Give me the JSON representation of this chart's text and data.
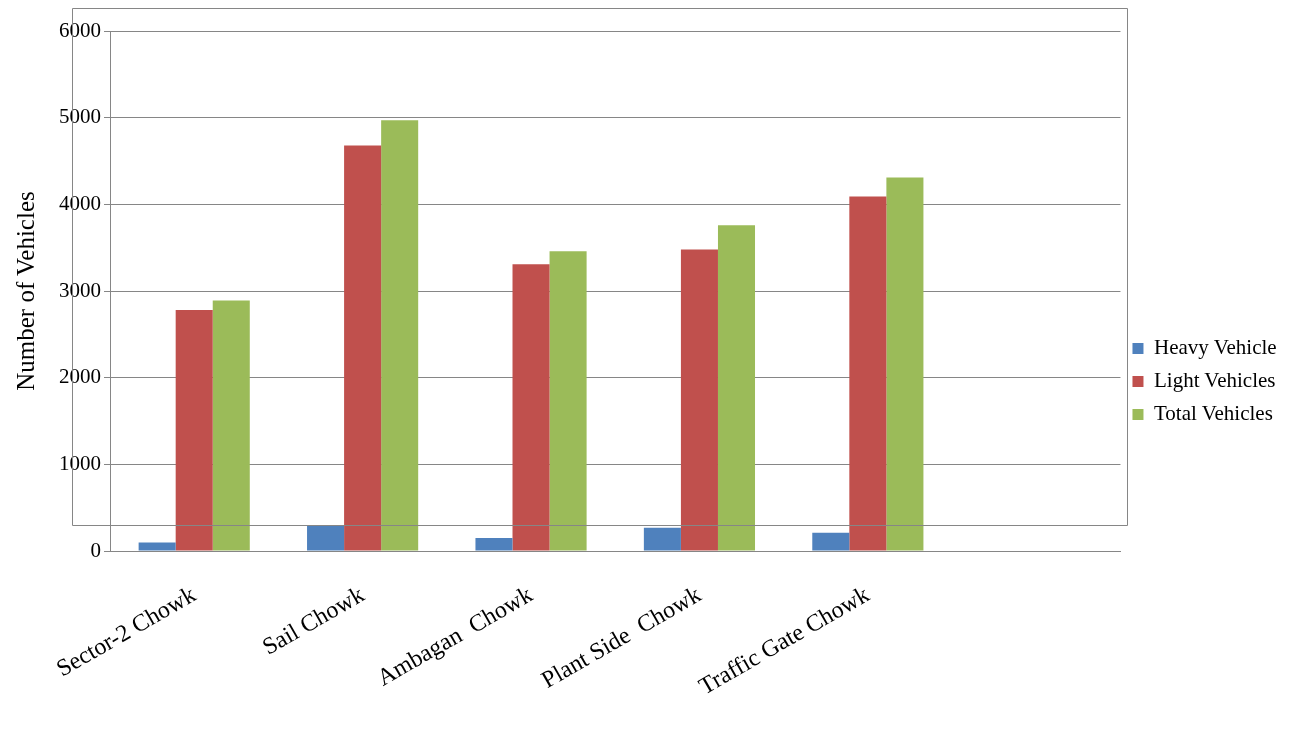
{
  "chart_data": {
    "type": "bar",
    "ylabel": "Number of Vehicles",
    "categories": [
      "Sector-2 Chowk",
      "Sail Chowk",
      "Ambagan  Chowk",
      "Plant Side  Chowk",
      "Traffic Gate Chowk",
      null
    ],
    "series": [
      {
        "name": "Heavy Vehicle",
        "color": "#4f81bd",
        "values": [
          100,
          300,
          150,
          270,
          210,
          null
        ]
      },
      {
        "name": "Light Vehicles",
        "color": "#c0504d",
        "values": [
          2780,
          4680,
          3310,
          3480,
          4090,
          null
        ]
      },
      {
        "name": "Total Vehicles",
        "color": "#9bbb59",
        "values": [
          2890,
          4970,
          3460,
          3760,
          4310,
          null
        ]
      }
    ],
    "ylim": [
      0,
      6000
    ],
    "yticks": [
      0,
      1000,
      2000,
      3000,
      4000,
      5000,
      6000
    ],
    "grid": "y",
    "legend": "right"
  }
}
